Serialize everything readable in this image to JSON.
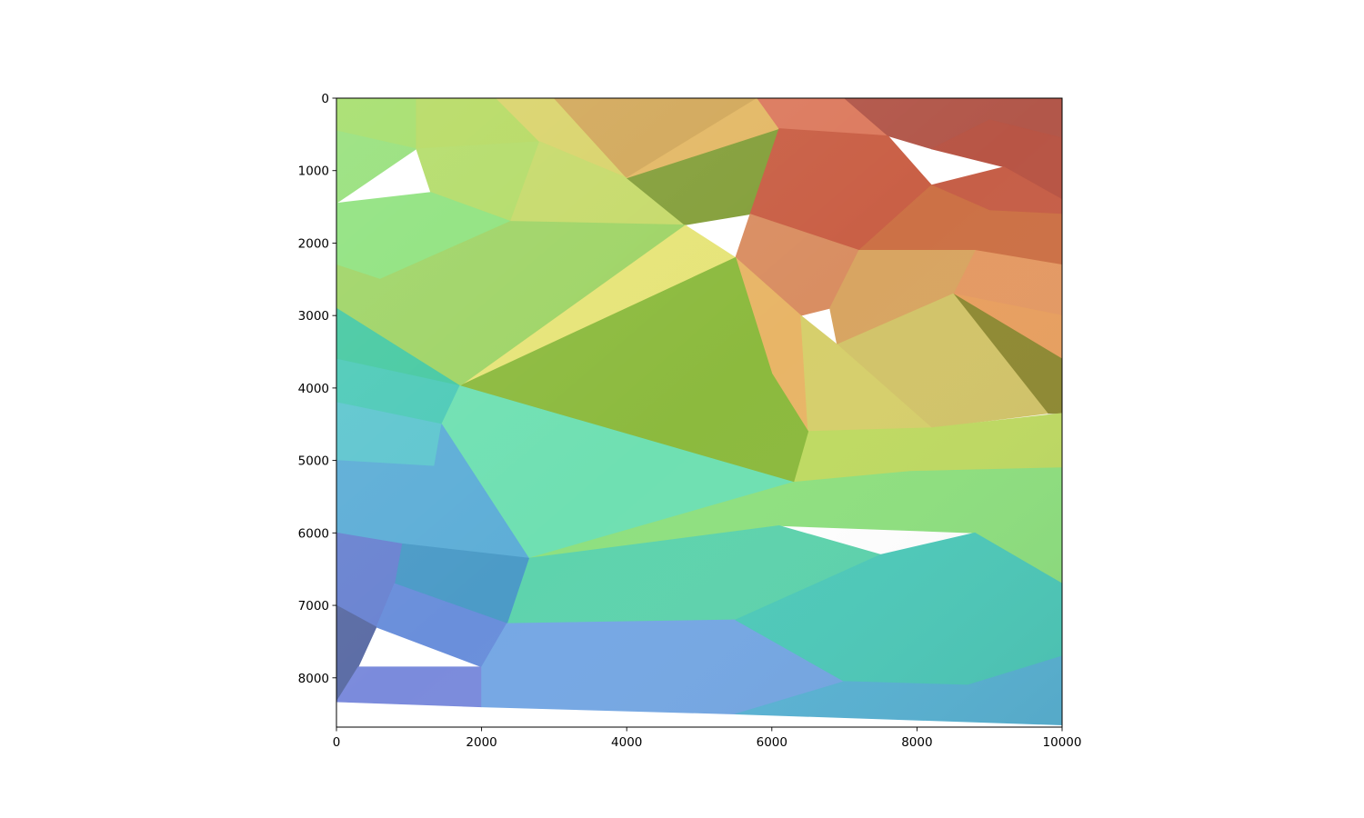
{
  "chart_data": {
    "type": "heatmap",
    "title": "",
    "xlabel": "",
    "ylabel": "",
    "xlim": [
      0,
      10000
    ],
    "ylim": [
      8680,
      0
    ],
    "y_axis_inverted": true,
    "grid": false,
    "colormap": "turbo-like (blue to green to yellow to red), semi-transparent with hillshading",
    "x_ticks": [
      {
        "value": 0,
        "label": "0"
      },
      {
        "value": 2000,
        "label": "2000"
      },
      {
        "value": 4000,
        "label": "4000"
      },
      {
        "value": 6000,
        "label": "6000"
      },
      {
        "value": 8000,
        "label": "8000"
      },
      {
        "value": 10000,
        "label": "10000"
      }
    ],
    "y_ticks": [
      {
        "value": 0,
        "label": "0"
      },
      {
        "value": 1000,
        "label": "1000"
      },
      {
        "value": 2000,
        "label": "2000"
      },
      {
        "value": 3000,
        "label": "3000"
      },
      {
        "value": 4000,
        "label": "4000"
      },
      {
        "value": 5000,
        "label": "5000"
      },
      {
        "value": 6000,
        "label": "6000"
      },
      {
        "value": 7000,
        "label": "7000"
      },
      {
        "value": 8000,
        "label": "8000"
      }
    ],
    "surface_extent": {
      "corners": [
        [
          0,
          0
        ],
        [
          10000,
          0
        ],
        [
          10000,
          8650
        ],
        [
          0,
          8330
        ]
      ]
    },
    "facets": [
      {
        "points": [
          [
            0,
            0
          ],
          [
            1100,
            0
          ],
          [
            1100,
            700
          ],
          [
            0,
            450
          ]
        ],
        "color": "#a4de6a"
      },
      {
        "points": [
          [
            0,
            450
          ],
          [
            1100,
            700
          ],
          [
            0,
            1450
          ]
        ],
        "color": "#96e07a"
      },
      {
        "points": [
          [
            1100,
            0
          ],
          [
            2800,
            0
          ],
          [
            2800,
            600
          ],
          [
            1100,
            700
          ]
        ],
        "color": "#b6da62"
      },
      {
        "points": [
          [
            1100,
            700
          ],
          [
            2800,
            600
          ],
          [
            2400,
            1700
          ],
          [
            1300,
            1300
          ]
        ],
        "color": "#b3dc68"
      },
      {
        "points": [
          [
            0,
            1450
          ],
          [
            1300,
            1300
          ],
          [
            2400,
            1700
          ],
          [
            600,
            2500
          ],
          [
            0,
            2300
          ]
        ],
        "color": "#8fe27e"
      },
      {
        "points": [
          [
            2200,
            0
          ],
          [
            3000,
            0
          ],
          [
            4000,
            1100
          ],
          [
            2800,
            600
          ]
        ],
        "color": "#d9d36a"
      },
      {
        "points": [
          [
            3000,
            0
          ],
          [
            5800,
            0
          ],
          [
            4000,
            1100
          ]
        ],
        "color": "#d2a85a"
      },
      {
        "points": [
          [
            2800,
            600
          ],
          [
            4000,
            1100
          ],
          [
            4800,
            1750
          ],
          [
            2400,
            1700
          ]
        ],
        "color": "#c6da6a"
      },
      {
        "points": [
          [
            4000,
            1100
          ],
          [
            6100,
            420
          ],
          [
            5700,
            1600
          ],
          [
            4800,
            1750
          ]
        ],
        "color": "#849f3a"
      },
      {
        "points": [
          [
            4000,
            1100
          ],
          [
            5800,
            0
          ],
          [
            6100,
            420
          ]
        ],
        "color": "#e3b865"
      },
      {
        "points": [
          [
            5800,
            0
          ],
          [
            7000,
            0
          ],
          [
            7600,
            520
          ],
          [
            6100,
            420
          ]
        ],
        "color": "#dc7a5e"
      },
      {
        "points": [
          [
            7000,
            0
          ],
          [
            10000,
            0
          ],
          [
            10000,
            550
          ],
          [
            9000,
            300
          ],
          [
            8200,
            700
          ],
          [
            7600,
            520
          ]
        ],
        "color": "#b2574a"
      },
      {
        "points": [
          [
            6100,
            420
          ],
          [
            7600,
            520
          ],
          [
            8200,
            1200
          ],
          [
            7200,
            2100
          ],
          [
            5700,
            1600
          ]
        ],
        "color": "#c95f45"
      },
      {
        "points": [
          [
            8200,
            700
          ],
          [
            9000,
            300
          ],
          [
            10000,
            550
          ],
          [
            10000,
            1400
          ],
          [
            9200,
            950
          ]
        ],
        "color": "#b85545"
      },
      {
        "points": [
          [
            8200,
            1200
          ],
          [
            9200,
            950
          ],
          [
            10000,
            1400
          ],
          [
            10000,
            1600
          ],
          [
            9000,
            1550
          ]
        ],
        "color": "#c65f48"
      },
      {
        "points": [
          [
            7200,
            2100
          ],
          [
            8200,
            1200
          ],
          [
            9000,
            1550
          ],
          [
            10000,
            1600
          ],
          [
            10000,
            2300
          ],
          [
            8800,
            2100
          ]
        ],
        "color": "#cc7146"
      },
      {
        "points": [
          [
            5700,
            1600
          ],
          [
            7200,
            2100
          ],
          [
            6800,
            2900
          ],
          [
            6400,
            3000
          ],
          [
            5500,
            2200
          ]
        ],
        "color": "#d98e62"
      },
      {
        "points": [
          [
            8800,
            2100
          ],
          [
            10000,
            2300
          ],
          [
            10000,
            3000
          ],
          [
            8500,
            2700
          ]
        ],
        "color": "#e49a64"
      },
      {
        "points": [
          [
            8500,
            2700
          ],
          [
            10000,
            3000
          ],
          [
            10000,
            3600
          ]
        ],
        "color": "#e8a060"
      },
      {
        "points": [
          [
            6800,
            2900
          ],
          [
            7200,
            2100
          ],
          [
            8800,
            2100
          ],
          [
            8500,
            2700
          ],
          [
            6900,
            3400
          ]
        ],
        "color": "#d8a562"
      },
      {
        "points": [
          [
            8500,
            2700
          ],
          [
            10000,
            3600
          ],
          [
            10000,
            4350
          ],
          [
            9800,
            4350
          ]
        ],
        "color": "#8f8a34"
      },
      {
        "points": [
          [
            6900,
            3400
          ],
          [
            8500,
            2700
          ],
          [
            9800,
            4350
          ],
          [
            8200,
            4550
          ]
        ],
        "color": "#d2c46a"
      },
      {
        "points": [
          [
            5500,
            2200
          ],
          [
            6400,
            3000
          ],
          [
            6500,
            4600
          ],
          [
            6000,
            3800
          ]
        ],
        "color": "#e8b567"
      },
      {
        "points": [
          [
            6400,
            3000
          ],
          [
            6900,
            3400
          ],
          [
            8200,
            4550
          ],
          [
            6500,
            4600
          ]
        ],
        "color": "#d6cf6c"
      },
      {
        "points": [
          [
            6500,
            4600
          ],
          [
            8200,
            4550
          ],
          [
            10000,
            4350
          ],
          [
            10000,
            5100
          ],
          [
            7900,
            5150
          ],
          [
            6300,
            5300
          ]
        ],
        "color": "#bfda63"
      },
      {
        "points": [
          [
            4800,
            1750
          ],
          [
            5500,
            2200
          ],
          [
            1700,
            3970
          ]
        ],
        "color": "#e6e478"
      },
      {
        "points": [
          [
            5500,
            2200
          ],
          [
            6000,
            3800
          ],
          [
            6500,
            4600
          ],
          [
            6300,
            5300
          ],
          [
            1700,
            3970
          ]
        ],
        "color": "#8cba3e"
      },
      {
        "points": [
          [
            600,
            2500
          ],
          [
            2400,
            1700
          ],
          [
            4800,
            1750
          ],
          [
            1700,
            3970
          ],
          [
            0,
            3600
          ],
          [
            0,
            2300
          ]
        ],
        "color": "#9fd466"
      },
      {
        "points": [
          [
            0,
            2900
          ],
          [
            1700,
            3970
          ],
          [
            0,
            3600
          ]
        ],
        "color": "#47c9a2"
      },
      {
        "points": [
          [
            0,
            3600
          ],
          [
            1700,
            3970
          ],
          [
            1450,
            4500
          ],
          [
            0,
            4200
          ]
        ],
        "color": "#4ecab8"
      },
      {
        "points": [
          [
            0,
            4200
          ],
          [
            1450,
            4500
          ],
          [
            1350,
            5080
          ],
          [
            0,
            5000
          ]
        ],
        "color": "#5fc6cf"
      },
      {
        "points": [
          [
            1700,
            3970
          ],
          [
            6300,
            5300
          ],
          [
            2650,
            6350
          ],
          [
            1450,
            4500
          ]
        ],
        "color": "#6fe0b2"
      },
      {
        "points": [
          [
            6300,
            5300
          ],
          [
            7900,
            5150
          ],
          [
            10000,
            5100
          ],
          [
            10000,
            6700
          ],
          [
            8800,
            6000
          ],
          [
            6100,
            5900
          ],
          [
            2650,
            6350
          ]
        ],
        "color": "#8fe080"
      },
      {
        "points": [
          [
            0,
            5000
          ],
          [
            1350,
            5080
          ],
          [
            1450,
            4500
          ],
          [
            2650,
            6350
          ],
          [
            900,
            6150
          ],
          [
            0,
            6000
          ]
        ],
        "color": "#5eaed7"
      },
      {
        "points": [
          [
            2650,
            6350
          ],
          [
            6100,
            5900
          ],
          [
            7500,
            6300
          ],
          [
            5500,
            7200
          ],
          [
            2350,
            7250
          ]
        ],
        "color": "#5ed3ad"
      },
      {
        "points": [
          [
            900,
            6150
          ],
          [
            2650,
            6350
          ],
          [
            2350,
            7250
          ],
          [
            800,
            6700
          ]
        ],
        "color": "#4c9bc7"
      },
      {
        "points": [
          [
            0,
            6000
          ],
          [
            900,
            6150
          ],
          [
            800,
            6700
          ],
          [
            550,
            7300
          ],
          [
            0,
            7000
          ]
        ],
        "color": "#6b84d1"
      },
      {
        "points": [
          [
            800,
            6700
          ],
          [
            2350,
            7250
          ],
          [
            2000,
            7850
          ],
          [
            550,
            7300
          ]
        ],
        "color": "#6a8fdb"
      },
      {
        "points": [
          [
            0,
            7000
          ],
          [
            550,
            7300
          ],
          [
            300,
            7850
          ],
          [
            0,
            8330
          ]
        ],
        "color": "#5c6da5"
      },
      {
        "points": [
          [
            300,
            7850
          ],
          [
            2000,
            7850
          ],
          [
            2000,
            8400
          ],
          [
            0,
            8330
          ]
        ],
        "color": "#7b8bdc"
      },
      {
        "points": [
          [
            2000,
            7850
          ],
          [
            2350,
            7250
          ],
          [
            5500,
            7200
          ],
          [
            7000,
            8050
          ],
          [
            5500,
            8500
          ],
          [
            2000,
            8400
          ]
        ],
        "color": "#76a8e4"
      },
      {
        "points": [
          [
            5500,
            7200
          ],
          [
            7500,
            6300
          ],
          [
            8800,
            6000
          ],
          [
            10000,
            6700
          ],
          [
            10000,
            7700
          ],
          [
            8700,
            8100
          ],
          [
            7000,
            8050
          ]
        ],
        "color": "#4fcaba"
      },
      {
        "points": [
          [
            5500,
            8500
          ],
          [
            7000,
            8050
          ],
          [
            8700,
            8100
          ],
          [
            10000,
            7700
          ],
          [
            10000,
            8650
          ]
        ],
        "color": "#5bb4d5"
      }
    ]
  }
}
